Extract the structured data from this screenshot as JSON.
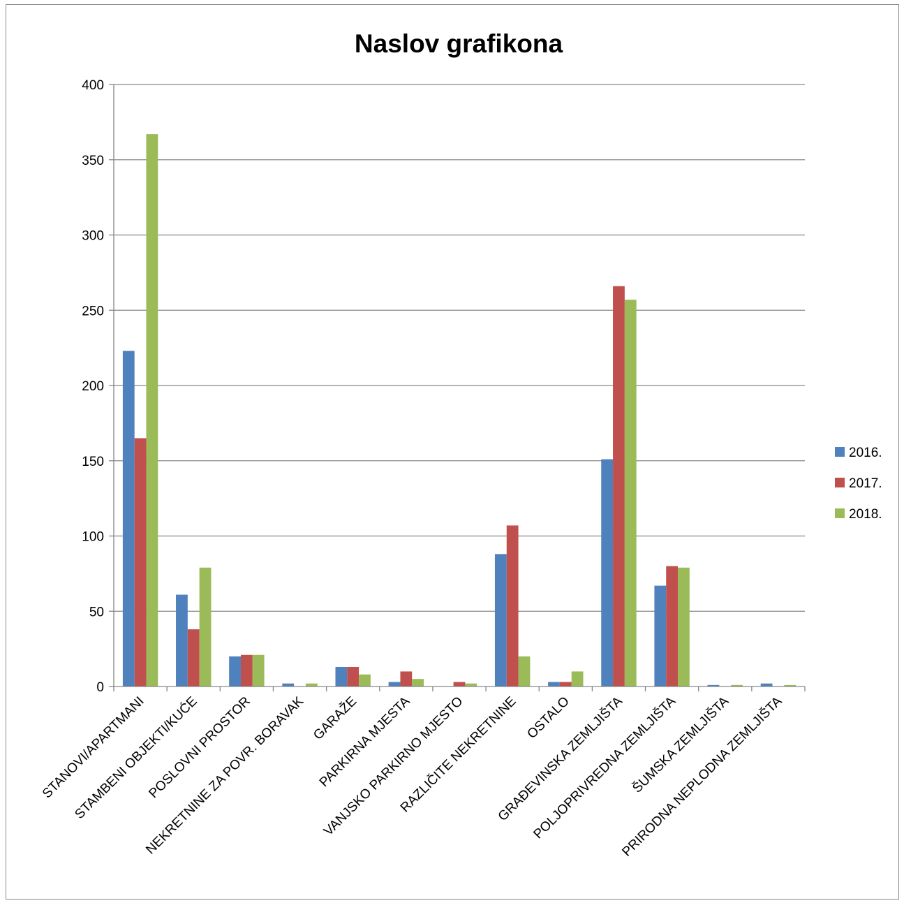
{
  "chart_data": {
    "type": "bar",
    "title": "Naslov grafikona",
    "xlabel": "",
    "ylabel": "",
    "ylim": [
      0,
      400
    ],
    "yticks": [
      0,
      50,
      100,
      150,
      200,
      250,
      300,
      350,
      400
    ],
    "grid": true,
    "legend_position": "right",
    "categories": [
      "STANOVI/APARTMANI",
      "STAMBENI OBJEKTI/KUĆE",
      "POSLOVNI PROSTOR",
      "NEKRETNINE ZA POVR. BORAVAK",
      "GARAŽE",
      "PARKIRNA MJESTA",
      "VANJSKO PARKIRNO MJESTO",
      "RAZLIČITE NEKRETNINE",
      "OSTALO",
      "GRAĐEVINSKA ZEMLJIŠTA",
      "POLJOPRIVREDNA ZEMLJIŠTA",
      "ŠUMSKA ZEMLJIŠTA",
      "PRIRODNA NEPLODNA ZEMLJIŠTA"
    ],
    "series": [
      {
        "name": "2016.",
        "color": "#4F81BD",
        "values": [
          223,
          61,
          20,
          2,
          13,
          3,
          0,
          88,
          3,
          151,
          67,
          1,
          2
        ]
      },
      {
        "name": "2017.",
        "color": "#C0504D",
        "values": [
          165,
          38,
          21,
          0,
          13,
          10,
          3,
          107,
          3,
          266,
          80,
          0,
          0
        ]
      },
      {
        "name": "2018.",
        "color": "#9BBB59",
        "values": [
          367,
          79,
          21,
          2,
          8,
          5,
          2,
          20,
          10,
          257,
          79,
          1,
          1
        ]
      }
    ]
  }
}
